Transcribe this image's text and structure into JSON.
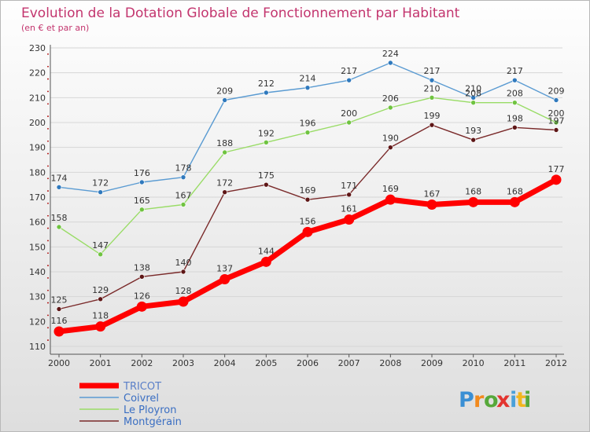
{
  "title": "Evolution de la Dotation Globale de Fonctionnement par Habitant",
  "subtitle": "(en € et par an)",
  "brand": {
    "letters": [
      "P",
      "r",
      "o",
      "x",
      "i",
      "t",
      "i"
    ],
    "colors": [
      "#3a8fd4",
      "#f28a1e",
      "#56a83a",
      "#e3342f",
      "#4aa0d9",
      "#f2b61e",
      "#56a83a"
    ]
  },
  "chart_data": {
    "type": "line",
    "title": "Evolution de la Dotation Globale de Fonctionnement par Habitant",
    "subtitle": "(en € et par an)",
    "xlabel": "",
    "ylabel": "",
    "x": [
      "2000",
      "2001",
      "2002",
      "2003",
      "2004",
      "2005",
      "2006",
      "2007",
      "2008",
      "2009",
      "2010",
      "2011",
      "2012"
    ],
    "yticks": [
      110,
      120,
      130,
      140,
      150,
      160,
      170,
      180,
      190,
      200,
      210,
      220,
      230
    ],
    "ylim": [
      110,
      230
    ],
    "grid": "horizontal",
    "legend_position": "bottom-left",
    "series": [
      {
        "name": "Coivrel",
        "color": "#5a9bd2",
        "marker_color": "#2f79bd",
        "values": [
          174,
          172,
          176,
          178,
          209,
          212,
          214,
          217,
          224,
          217,
          210,
          217,
          209
        ]
      },
      {
        "name": "Le Ployron",
        "color": "#99dc66",
        "marker_color": "#6fc340",
        "values": [
          158,
          147,
          165,
          167,
          188,
          192,
          196,
          200,
          206,
          210,
          208,
          208,
          200
        ]
      },
      {
        "name": "Montgérain",
        "color": "#7a2a2a",
        "marker_color": "#5e1616",
        "values": [
          125,
          129,
          138,
          140,
          172,
          175,
          169,
          171,
          190,
          199,
          193,
          198,
          197
        ]
      },
      {
        "name": "TRICOT",
        "color": "#ff0000",
        "marker_color": "#ff0000",
        "values": [
          116,
          118,
          126,
          128,
          137,
          144,
          156,
          161,
          169,
          167,
          168,
          168,
          177
        ],
        "emphasis": true
      }
    ],
    "legend": [
      "TRICOT",
      "Coivrel",
      "Le Ployron",
      "Montgérain"
    ]
  }
}
